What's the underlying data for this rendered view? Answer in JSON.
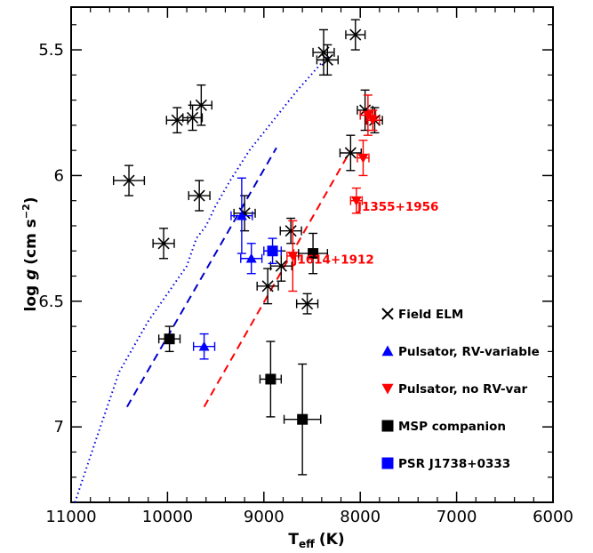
{
  "chart_data": {
    "type": "scatter",
    "title": "",
    "xlabel": {
      "main": "T",
      "sub": "eff",
      "unit": "(K)"
    },
    "ylabel": {
      "main": "log ",
      "italic": "g",
      "unit": "(cm s",
      "sup": "−2",
      "close": ")"
    },
    "xlim": [
      11000,
      6000
    ],
    "ylim": [
      5.33,
      7.3
    ],
    "y_inverted": true,
    "x_ticks": [
      11000,
      10000,
      9000,
      8000,
      7000,
      6000
    ],
    "x_tick_labels": [
      "11000",
      "10000",
      "9000",
      "8000",
      "7000",
      "6000"
    ],
    "y_ticks": [
      5.5,
      6,
      6.5,
      7
    ],
    "y_tick_labels": [
      "5.5",
      "6",
      "6.5",
      "7"
    ],
    "grid": false,
    "legend_position": "bottom-right",
    "colors": {
      "field": "#000000",
      "pulsator_rv": "#0000ff",
      "pulsator_norv": "#ff0000",
      "msp": "#000000",
      "psr": "#0000ff",
      "dashed_blue": "#0000cc",
      "dotted_blue": "#0000dd",
      "dashed_red": "#ff0000"
    },
    "series": [
      {
        "name": "Field ELM",
        "marker": "asterisk",
        "color": "#000000",
        "points": [
          {
            "x": 8050,
            "y": 5.44,
            "xerr": 100,
            "yerr": 0.06
          },
          {
            "x": 8380,
            "y": 5.51,
            "xerr": 110,
            "yerr": 0.09
          },
          {
            "x": 8340,
            "y": 5.54,
            "xerr": 110,
            "yerr": 0.06
          },
          {
            "x": 9650,
            "y": 5.72,
            "xerr": 110,
            "yerr": 0.08
          },
          {
            "x": 9900,
            "y": 5.78,
            "xerr": 110,
            "yerr": 0.05
          },
          {
            "x": 9740,
            "y": 5.77,
            "xerr": 100,
            "yerr": 0.05
          },
          {
            "x": 7950,
            "y": 5.74,
            "xerr": 80,
            "yerr": 0.08
          },
          {
            "x": 7850,
            "y": 5.78,
            "xerr": 80,
            "yerr": 0.05
          },
          {
            "x": 8100,
            "y": 5.91,
            "xerr": 110,
            "yerr": 0.07
          },
          {
            "x": 10400,
            "y": 6.02,
            "xerr": 160,
            "yerr": 0.06
          },
          {
            "x": 9670,
            "y": 6.08,
            "xerr": 110,
            "yerr": 0.06
          },
          {
            "x": 9200,
            "y": 6.15,
            "xerr": 110,
            "yerr": 0.07
          },
          {
            "x": 10040,
            "y": 6.27,
            "xerr": 110,
            "yerr": 0.06
          },
          {
            "x": 8720,
            "y": 6.22,
            "xerr": 110,
            "yerr": 0.05
          },
          {
            "x": 8820,
            "y": 6.36,
            "xerr": 110,
            "yerr": 0.06
          },
          {
            "x": 8960,
            "y": 6.44,
            "xerr": 110,
            "yerr": 0.07
          },
          {
            "x": 8550,
            "y": 6.51,
            "xerr": 110,
            "yerr": 0.04
          }
        ]
      },
      {
        "name": "Pulsator, RV-variable",
        "marker": "triangle-up",
        "color": "#0000ff",
        "points": [
          {
            "x": 9230,
            "y": 6.16,
            "xerr": 110,
            "yerr": 0.15
          },
          {
            "x": 9130,
            "y": 6.33,
            "xerr": 110,
            "yerr": 0.06
          },
          {
            "x": 9620,
            "y": 6.68,
            "xerr": 110,
            "yerr": 0.05
          }
        ]
      },
      {
        "name": "Pulsator, no RV-var",
        "marker": "triangle-down",
        "color": "#ff0000",
        "points": [
          {
            "x": 7920,
            "y": 5.76,
            "xerr": 80,
            "yerr": 0.08
          },
          {
            "x": 7870,
            "y": 5.78,
            "xerr": 70,
            "yerr": 0.04
          },
          {
            "x": 7970,
            "y": 5.93,
            "xerr": 60,
            "yerr": 0.07
          },
          {
            "x": 8040,
            "y": 6.1,
            "xerr": 60,
            "yerr": 0.05
          },
          {
            "x": 8700,
            "y": 6.32,
            "xerr": 60,
            "yerr": 0.14
          }
        ]
      },
      {
        "name": "MSP companion",
        "marker": "square",
        "color": "#000000",
        "points": [
          {
            "x": 9980,
            "y": 6.65,
            "xerr": 110,
            "yerr": 0.05
          },
          {
            "x": 8930,
            "y": 6.81,
            "xerr": 110,
            "yerr": 0.15
          },
          {
            "x": 8600,
            "y": 6.97,
            "xerr": 190,
            "yerr": 0.22
          },
          {
            "x": 8490,
            "y": 6.31,
            "xerr": 150,
            "yerr": 0.08
          }
        ]
      },
      {
        "name": "PSR J1738+0333",
        "marker": "square",
        "color": "#0000ff",
        "points": [
          {
            "x": 8910,
            "y": 6.3,
            "xerr": 90,
            "yerr": 0.05
          }
        ]
      }
    ],
    "lines": [
      {
        "style": "dotted",
        "color": "#0000dd",
        "points": [
          [
            10960,
            7.3
          ],
          [
            10750,
            7.06
          ],
          [
            10500,
            6.78
          ],
          [
            10200,
            6.58
          ],
          [
            9800,
            6.36
          ],
          [
            9700,
            6.25
          ],
          [
            9600,
            6.2
          ],
          [
            9500,
            6.12
          ],
          [
            9350,
            6.02
          ],
          [
            9150,
            5.9
          ],
          [
            8900,
            5.78
          ],
          [
            8650,
            5.66
          ],
          [
            8350,
            5.53
          ]
        ]
      },
      {
        "style": "dashed",
        "color": "#0000cc",
        "points": [
          [
            10420,
            6.92
          ],
          [
            8870,
            5.89
          ]
        ]
      },
      {
        "style": "dashed",
        "color": "#ff0000",
        "points": [
          [
            9620,
            6.92
          ],
          [
            8100,
            5.9
          ]
        ]
      }
    ],
    "annotations": [
      {
        "text": "J1355+1956",
        "x": 8030,
        "y": 6.14,
        "color": "#ff0000"
      },
      {
        "text": "J1614+1912",
        "x": 8700,
        "y": 6.35,
        "color": "#ff0000"
      }
    ]
  },
  "legend": [
    {
      "label": "Field ELM",
      "marker": "asterisk",
      "color": "#000000"
    },
    {
      "label": "Pulsator, RV-variable",
      "marker": "triangle-up",
      "color": "#0000ff"
    },
    {
      "label": "Pulsator, no RV-var",
      "marker": "triangle-down",
      "color": "#ff0000"
    },
    {
      "label": "MSP companion",
      "marker": "square",
      "color": "#000000"
    },
    {
      "label": "PSR J1738+0333",
      "marker": "square",
      "color": "#0000ff"
    }
  ]
}
